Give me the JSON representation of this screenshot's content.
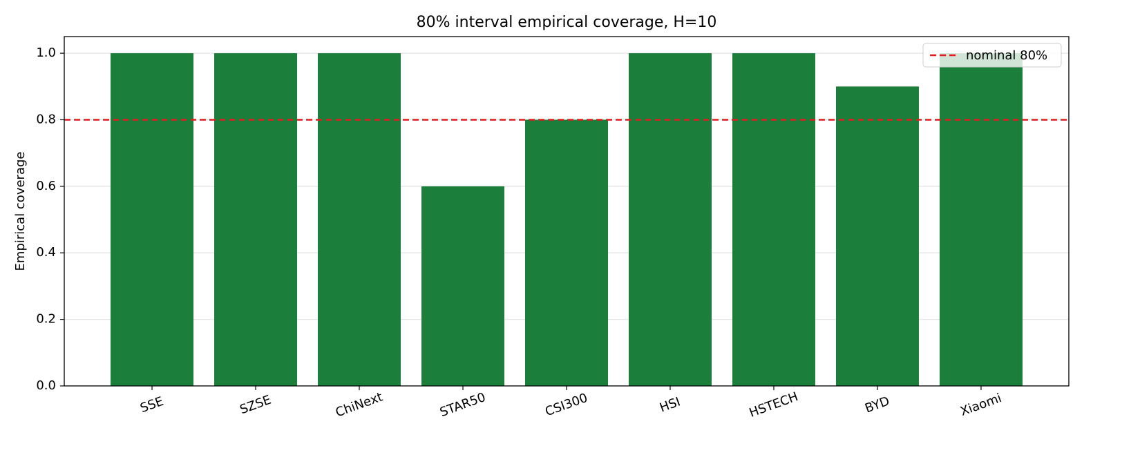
{
  "chart_data": {
    "type": "bar",
    "title": "80% interval empirical coverage, H=10",
    "y_label": "Empirical coverage",
    "categories": [
      "SSE",
      "SZSE",
      "ChiNext",
      "STAR50",
      "CSI300",
      "HSI",
      "HSTECH",
      "BYD",
      "Xiaomi"
    ],
    "values": [
      1.0,
      1.0,
      1.0,
      0.6,
      0.8,
      1.0,
      1.0,
      0.9,
      1.0
    ],
    "color": "#1b7f3b",
    "ylim": [
      0,
      1.05
    ],
    "yticks": [
      {
        "value": 0,
        "label": "0.0"
      },
      0.2,
      0.4,
      0.6,
      0.8,
      {
        "value": 1,
        "label": "1.0"
      }
    ],
    "grid": true,
    "reference_line": {
      "value": 0.8,
      "label": "nominal 80%",
      "color": "#e41a1c"
    },
    "legend": "upper right"
  }
}
